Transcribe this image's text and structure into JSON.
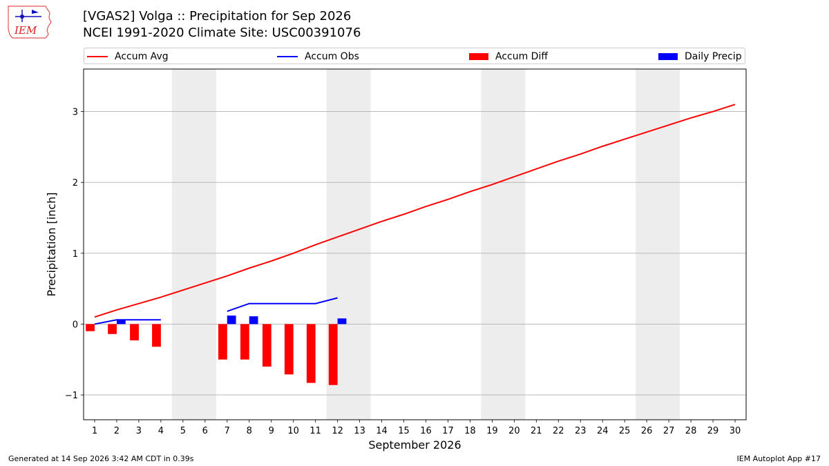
{
  "header": {
    "title_line1": "[VGAS2] Volga :: Precipitation for Sep 2026",
    "title_line2": "NCEI 1991-2020 Climate Site: USC00391076",
    "logo_text": "IEM"
  },
  "footer": {
    "generated": "Generated at 14 Sep 2026 3:42 AM CDT in 0.39s",
    "app": "IEM Autoplot App #17"
  },
  "colors": {
    "avg": "#ff0000",
    "obs": "#0000ff",
    "diff": "#ff0000",
    "daily": "#0000ff",
    "weekend_shade": "#ededed",
    "grid": "#b0b0b0"
  },
  "chart_data": {
    "type": "bar",
    "title": "[VGAS2] Volga :: Precipitation for Sep 2026",
    "subtitle": "NCEI 1991-2020 Climate Site: USC00391076",
    "xlabel": "September 2026",
    "ylabel": "Precipitation [inch]",
    "xlim": [
      0.5,
      30.5
    ],
    "ylim": [
      -1.35,
      3.6
    ],
    "x_ticks": [
      1,
      2,
      3,
      4,
      5,
      6,
      7,
      8,
      9,
      10,
      11,
      12,
      13,
      14,
      15,
      16,
      17,
      18,
      19,
      20,
      21,
      22,
      23,
      24,
      25,
      26,
      27,
      28,
      29,
      30
    ],
    "y_ticks": [
      -1,
      0,
      1,
      2,
      3
    ],
    "y_tick_labels": [
      "−1",
      "0",
      "1",
      "2",
      "3"
    ],
    "grid": "horizontal",
    "legend_position": "top",
    "weekend_shading": [
      [
        5,
        6
      ],
      [
        12,
        13
      ],
      [
        19,
        20
      ],
      [
        26,
        27
      ]
    ],
    "series": [
      {
        "name": "Accum Avg",
        "kind": "line",
        "x": [
          1,
          2,
          3,
          4,
          5,
          6,
          7,
          8,
          9,
          10,
          11,
          12,
          13,
          14,
          15,
          16,
          17,
          18,
          19,
          20,
          21,
          22,
          23,
          24,
          25,
          26,
          27,
          28,
          29,
          30
        ],
        "values": [
          0.1,
          0.2,
          0.29,
          0.38,
          0.48,
          0.58,
          0.68,
          0.79,
          0.89,
          1.0,
          1.12,
          1.23,
          1.34,
          1.45,
          1.55,
          1.66,
          1.76,
          1.87,
          1.97,
          2.08,
          2.19,
          2.3,
          2.4,
          2.51,
          2.61,
          2.71,
          2.81,
          2.91,
          3.0,
          3.1
        ]
      },
      {
        "name": "Accum Obs",
        "kind": "line",
        "segments": [
          {
            "x": [
              1,
              2,
              3,
              4
            ],
            "values": [
              0.0,
              0.06,
              0.06,
              0.06
            ]
          },
          {
            "x": [
              7,
              8,
              9,
              10,
              11,
              12
            ],
            "values": [
              0.18,
              0.29,
              0.29,
              0.29,
              0.29,
              0.37
            ]
          }
        ]
      },
      {
        "name": "Accum Diff",
        "kind": "bar",
        "x": [
          1,
          2,
          3,
          4,
          7,
          8,
          9,
          10,
          11,
          12
        ],
        "values": [
          -0.1,
          -0.14,
          -0.23,
          -0.32,
          -0.5,
          -0.5,
          -0.6,
          -0.71,
          -0.83,
          -0.86
        ]
      },
      {
        "name": "Daily Precip",
        "kind": "bar",
        "x": [
          2,
          7,
          8,
          12
        ],
        "values": [
          0.06,
          0.12,
          0.11,
          0.08
        ]
      }
    ]
  }
}
